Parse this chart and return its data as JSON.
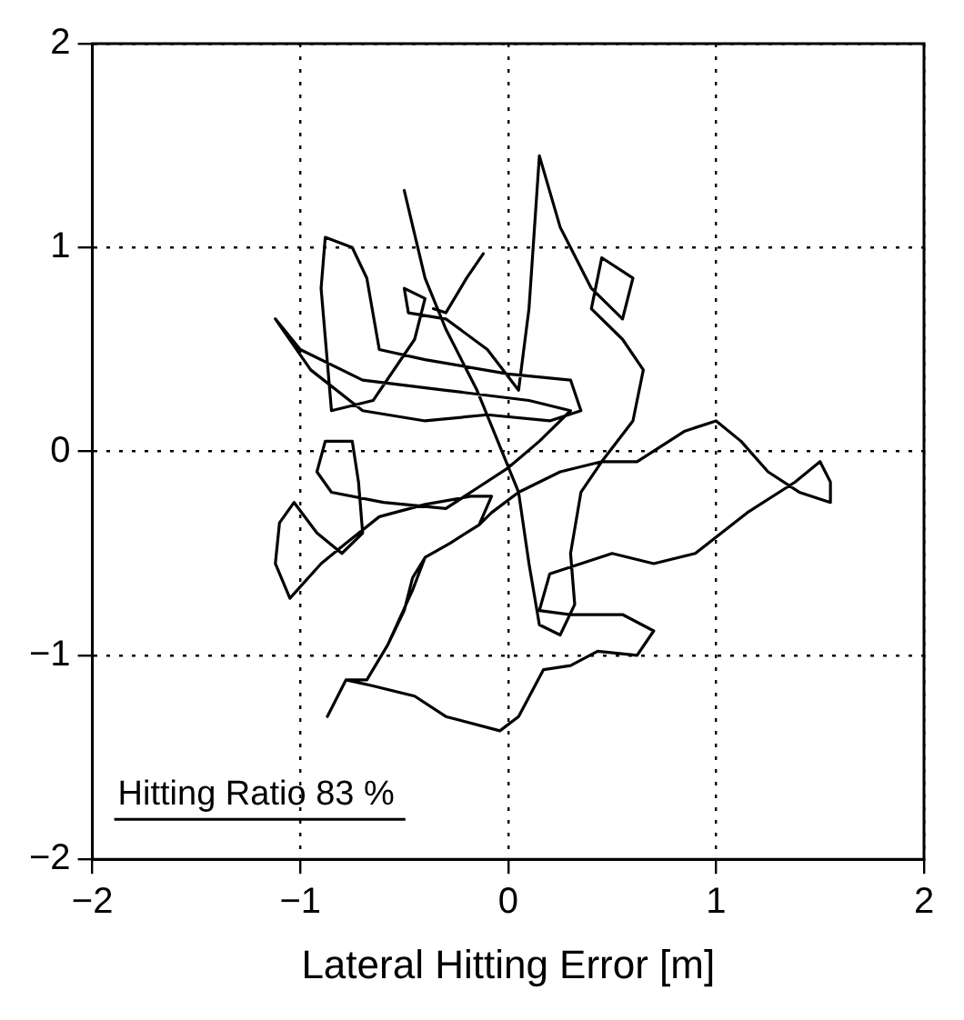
{
  "chart_data": {
    "type": "line",
    "xlabel": "Lateral Hitting Error [m]",
    "annotations": [
      "Hitting Ratio 83 %"
    ],
    "xlim": [
      -2,
      2
    ],
    "ylim": [
      -2,
      2
    ],
    "xticks": [
      {
        "value": -2,
        "label": "−2"
      },
      {
        "value": -1,
        "label": "−1"
      },
      0,
      1,
      2
    ],
    "yticks": [
      {
        "value": -2,
        "label": "−2"
      },
      {
        "value": -1,
        "label": "−1"
      },
      0,
      1,
      2
    ],
    "grid": true,
    "legend": false,
    "marker": "none",
    "line_style": "solid",
    "series": [
      {
        "color": "#000000",
        "x": [
          -0.87,
          -0.78,
          -0.65,
          -0.45,
          -0.3,
          -0.04,
          0.05,
          0.17,
          0.3,
          0.43,
          0.62,
          0.7,
          0.55,
          0.3,
          0.15,
          0.2,
          0.35,
          0.5,
          0.7,
          0.9,
          1.15,
          1.38,
          1.5,
          1.55,
          1.55,
          1.4,
          1.25,
          1.12,
          1.0,
          0.85,
          0.62,
          0.45,
          0.25,
          0.05,
          -0.08,
          -0.14,
          -0.28,
          -0.4,
          -0.46,
          -0.5,
          -0.58,
          -0.68,
          -0.78,
          -0.68,
          -0.58,
          -0.46,
          -0.4,
          -0.28,
          -0.14,
          -0.08,
          -0.18,
          -0.4,
          -0.62,
          -0.78,
          -0.9,
          -1.05,
          -1.12,
          -1.1,
          -1.03,
          -0.92,
          -0.8,
          -0.7,
          -0.72,
          -0.75,
          -0.88,
          -0.92,
          -0.85,
          -0.6,
          -0.3,
          -0.15,
          0.0,
          0.15,
          0.3,
          0.1,
          -0.3,
          -0.7,
          -1.0,
          -1.12,
          -0.95,
          -0.7,
          -0.4,
          -0.1,
          0.2,
          0.35,
          0.3,
          0.0,
          -0.4,
          -0.62,
          -0.68,
          -0.75,
          -0.88,
          -0.9,
          -0.85,
          -0.65,
          -0.45,
          -0.4,
          -0.5,
          -0.48,
          -0.3,
          -0.1,
          0.05,
          0.1,
          0.15,
          0.25,
          0.4,
          0.55,
          0.6,
          0.45,
          0.4,
          0.55,
          0.65,
          0.6,
          0.45,
          0.35,
          0.3,
          0.32,
          0.25,
          0.15,
          0.1,
          0.05,
          -0.05,
          -0.15,
          -0.3,
          -0.4,
          -0.5
        ],
        "values": [
          -1.3,
          -1.12,
          -1.15,
          -1.2,
          -1.3,
          -1.37,
          -1.3,
          -1.07,
          -1.05,
          -0.98,
          -1.0,
          -0.88,
          -0.8,
          -0.8,
          -0.78,
          -0.6,
          -0.55,
          -0.5,
          -0.55,
          -0.5,
          -0.3,
          -0.15,
          -0.05,
          -0.15,
          -0.25,
          -0.2,
          -0.1,
          0.05,
          0.15,
          0.1,
          -0.05,
          -0.05,
          -0.1,
          -0.2,
          -0.3,
          -0.36,
          -0.45,
          -0.52,
          -0.62,
          -0.78,
          -0.95,
          -1.12,
          -1.12,
          -1.12,
          -0.95,
          -0.68,
          -0.52,
          -0.45,
          -0.36,
          -0.22,
          -0.22,
          -0.26,
          -0.32,
          -0.45,
          -0.55,
          -0.72,
          -0.55,
          -0.35,
          -0.25,
          -0.4,
          -0.5,
          -0.4,
          -0.15,
          0.05,
          0.05,
          -0.1,
          -0.2,
          -0.25,
          -0.28,
          -0.18,
          -0.08,
          0.05,
          0.2,
          0.25,
          0.3,
          0.35,
          0.5,
          0.65,
          0.4,
          0.2,
          0.15,
          0.18,
          0.15,
          0.2,
          0.35,
          0.38,
          0.45,
          0.5,
          0.85,
          1.0,
          1.05,
          0.8,
          0.2,
          0.25,
          0.55,
          0.75,
          0.8,
          0.68,
          0.65,
          0.5,
          0.3,
          0.7,
          1.45,
          1.1,
          0.8,
          0.65,
          0.85,
          0.95,
          0.7,
          0.55,
          0.4,
          0.15,
          -0.05,
          -0.2,
          -0.5,
          -0.75,
          -0.9,
          -0.85,
          -0.55,
          -0.2,
          0.05,
          0.3,
          0.6,
          0.85,
          1.28
        ]
      },
      {
        "color": "#000000",
        "x": [
          -0.36,
          -0.3,
          -0.2,
          -0.12
        ],
        "values": [
          0.7,
          0.68,
          0.85,
          0.97
        ]
      }
    ]
  }
}
